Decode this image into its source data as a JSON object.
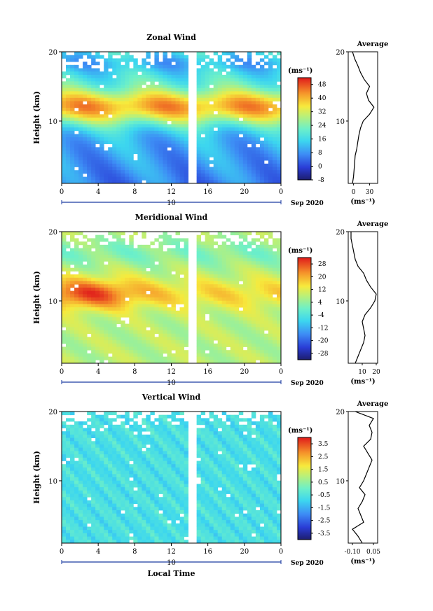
{
  "chart_data": [
    {
      "type": "heatmap",
      "title": "Zonal Wind",
      "ylabel": "Height (km)",
      "unit_label": "(ms⁻¹)",
      "xticks": [
        "0",
        "4",
        "8",
        "12",
        "16",
        "20",
        "0"
      ],
      "yticks": [
        "20",
        "10"
      ],
      "date_day": "10",
      "date_label": "Sep 2020",
      "xlim_hours": [
        0,
        24
      ],
      "ylim_km": [
        1,
        20
      ],
      "colorbar_ticks": [
        "48",
        "40",
        "32",
        "24",
        "16",
        "8",
        "0",
        "-8"
      ],
      "colorbar_range": [
        -8,
        52
      ],
      "jet_core_km": 12,
      "avg_panel": {
        "title": "Average",
        "xticks": [
          "0",
          "30"
        ],
        "xlim": [
          -10,
          45
        ],
        "xlabel": "(ms⁻¹)",
        "yticks": [
          "20",
          "10"
        ],
        "profile": {
          "height_km": [
            1,
            2,
            3,
            4,
            5,
            6,
            7,
            8,
            9,
            10,
            11,
            12,
            13,
            14,
            15,
            16,
            17,
            18,
            19,
            20
          ],
          "value": [
            -2,
            0,
            1,
            2,
            3,
            6,
            8,
            10,
            13,
            18,
            30,
            38,
            28,
            24,
            30,
            20,
            13,
            8,
            2,
            -2
          ]
        }
      }
    },
    {
      "type": "heatmap",
      "title": "Meridional Wind",
      "ylabel": "Height (km)",
      "unit_label": "(ms⁻¹)",
      "xticks": [
        "0",
        "4",
        "8",
        "12",
        "16",
        "20",
        "0"
      ],
      "yticks": [
        "20",
        "10"
      ],
      "date_day": "10",
      "date_label": "Sep 2020",
      "xlim_hours": [
        0,
        24
      ],
      "ylim_km": [
        1,
        20
      ],
      "colorbar_ticks": [
        "28",
        "20",
        "12",
        "4",
        "-4",
        "-12",
        "-20",
        "-28"
      ],
      "colorbar_range": [
        -32,
        32
      ],
      "avg_panel": {
        "title": "Average",
        "xticks": [
          "10",
          "20"
        ],
        "xlim": [
          0,
          21
        ],
        "xlabel": "(ms⁻¹)",
        "yticks": [
          "20",
          "10"
        ],
        "profile": {
          "height_km": [
            1,
            2,
            3,
            4,
            5,
            6,
            7,
            8,
            9,
            10,
            11,
            12,
            13,
            14,
            15,
            16,
            17,
            18,
            19,
            20
          ],
          "value": [
            5,
            7,
            9,
            11,
            12,
            11,
            10,
            12,
            16,
            19,
            20,
            16,
            13,
            11,
            7,
            5,
            4,
            3,
            2,
            2
          ]
        }
      }
    },
    {
      "type": "heatmap",
      "title": "Vertical Wind",
      "ylabel": "Height (km)",
      "xlabel": "Local Time",
      "unit_label": "(ms⁻¹)",
      "xticks": [
        "0",
        "4",
        "8",
        "12",
        "16",
        "20",
        "0"
      ],
      "yticks": [
        "20",
        "10"
      ],
      "date_day": "10",
      "date_label": "Sep 2020",
      "xlim_hours": [
        0,
        24
      ],
      "ylim_km": [
        1,
        20
      ],
      "colorbar_ticks": [
        "3.5",
        "2.5",
        "1.5",
        "0.5",
        "-0.5",
        "-1.5",
        "-2.5",
        "-3.5"
      ],
      "colorbar_range": [
        -4,
        4
      ],
      "avg_panel": {
        "title": "Average",
        "xticks": [
          "-0.10",
          "0.05"
        ],
        "xlim": [
          -0.13,
          0.08
        ],
        "xlabel": "(ms⁻¹)",
        "yticks": [
          "20",
          "10"
        ],
        "profile": {
          "height_km": [
            1,
            2,
            3,
            4,
            5,
            6,
            7,
            8,
            9,
            10,
            11,
            12,
            13,
            14,
            15,
            16,
            17,
            18,
            19,
            20
          ],
          "value": [
            -0.03,
            -0.06,
            -0.1,
            -0.02,
            -0.04,
            -0.06,
            -0.03,
            -0.01,
            -0.05,
            -0.02,
            0.0,
            0.02,
            0.04,
            0.01,
            -0.02,
            0.03,
            0.04,
            0.02,
            0.05,
            -0.08
          ]
        }
      }
    }
  ]
}
